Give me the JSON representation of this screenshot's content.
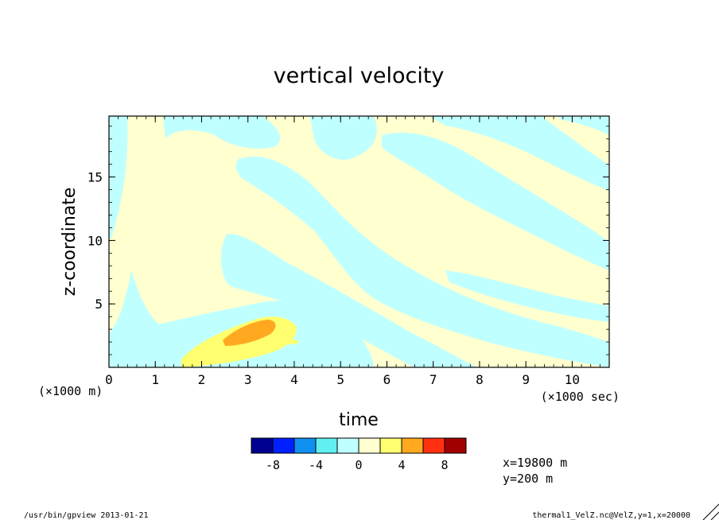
{
  "chart_data": {
    "type": "heatmap",
    "title": "vertical velocity",
    "xlabel": "time",
    "ylabel": "z-coordinate",
    "x_unit": "(×1000 sec)",
    "y_unit": "(×1000 m)",
    "xlim": [
      0,
      10.8
    ],
    "ylim": [
      0,
      19.8
    ],
    "x_ticks": [
      0,
      1,
      2,
      3,
      4,
      5,
      6,
      7,
      8,
      9,
      10
    ],
    "y_ticks": [
      5,
      10,
      15
    ],
    "levels": [
      -10,
      -8,
      -6,
      -4,
      -2,
      0,
      2,
      4,
      6,
      8,
      10
    ],
    "colors": [
      "#000090",
      "#0020ff",
      "#1090f0",
      "#60f0f0",
      "#c0ffff",
      "#ffffd0",
      "#ffff70",
      "#ffa820",
      "#ff3010",
      "#a00000"
    ],
    "colorbar_ticks": [
      "-8",
      "-4",
      "0",
      "4",
      "8"
    ],
    "note": "Field mostly between -2 and 2 (light cyan / light yellow diagonal bands); positive maximum near t=3.2, z=2.5 (4 to 6)."
  },
  "annotation": {
    "line1": "x=19800 m",
    "line2": "y=200 m"
  },
  "footer": {
    "left": "/usr/bin/gpview  2013-01-21",
    "right": "thermal1_VelZ.nc@VelZ,y=1,x=20000"
  }
}
